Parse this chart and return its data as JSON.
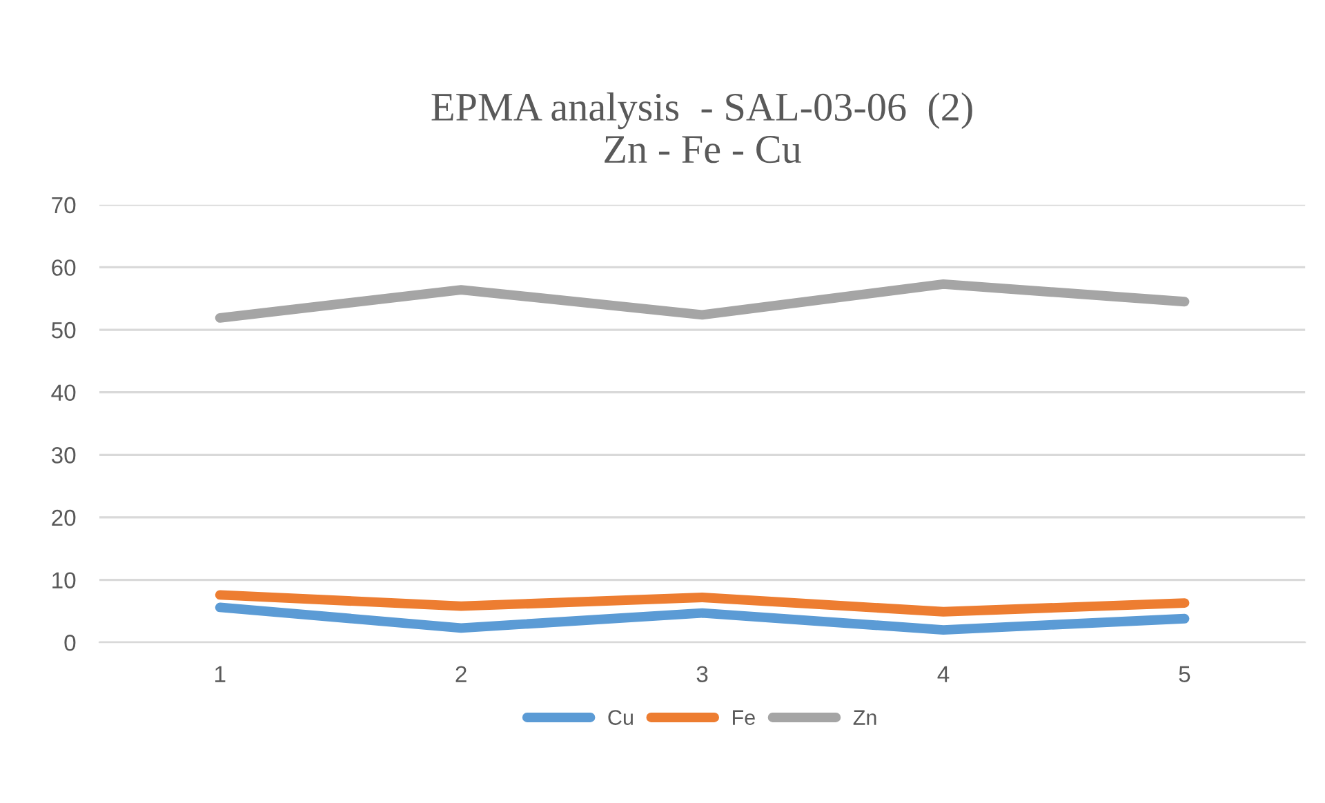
{
  "chart_data": {
    "type": "line",
    "title": "EPMA analysis  - SAL-03-06  (2)\nZn - Fe - Cu",
    "categories": [
      "1",
      "2",
      "3",
      "4",
      "5"
    ],
    "series": [
      {
        "name": "Cu",
        "color": "#5b9bd5",
        "values": [
          5.6,
          2.3,
          4.7,
          2.0,
          3.8
        ]
      },
      {
        "name": "Fe",
        "color": "#ed7d31",
        "values": [
          7.6,
          5.8,
          7.2,
          4.9,
          6.3
        ]
      },
      {
        "name": "Zn",
        "color": "#a5a5a5",
        "values": [
          51.9,
          56.4,
          52.4,
          57.3,
          54.5
        ]
      }
    ],
    "ylim": [
      0,
      70
    ],
    "yticks": [
      0,
      10,
      20,
      30,
      40,
      50,
      60,
      70
    ],
    "grid": "y",
    "legend": "bottom",
    "marker": "none",
    "line_style": "solid"
  }
}
